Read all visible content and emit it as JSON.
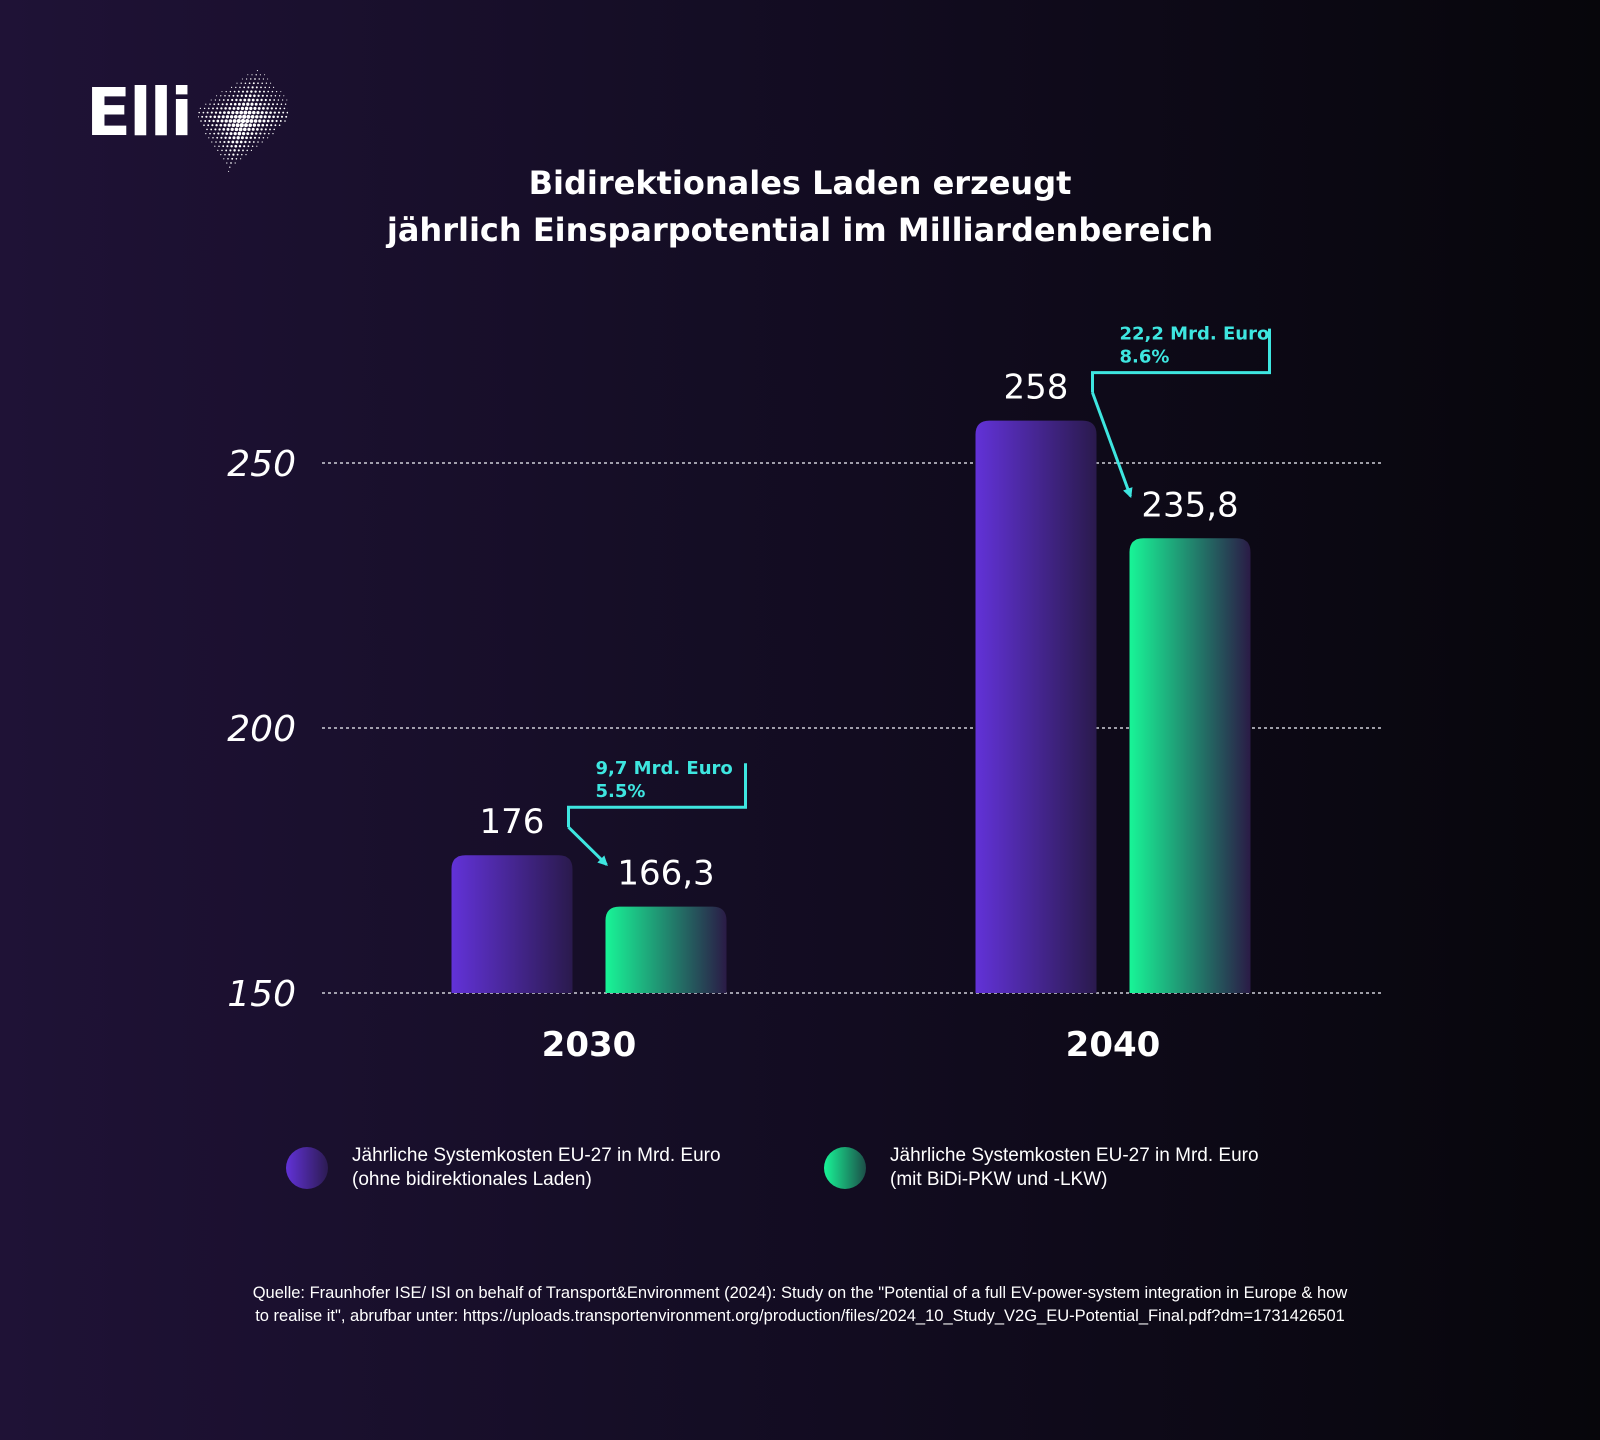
{
  "logo": {
    "text": "Elli"
  },
  "title_lines": [
    "Bidirektionales Laden erzeugt",
    "jährlich Einsparpotential im Milliardenbereich"
  ],
  "chart_data": {
    "type": "bar",
    "categories": [
      "2030",
      "2040"
    ],
    "series": [
      {
        "name": "Jährliche Systemkosten EU-27 in Mrd. Euro (ohne bidirektionales Laden)",
        "values": [
          176,
          258
        ],
        "labels": [
          "176",
          "258"
        ],
        "color": "#6232d8"
      },
      {
        "name": "Jährliche Systemkosten EU-27 in Mrd. Euro (mit BiDi-PKW und -LKW)",
        "values": [
          166.3,
          235.8
        ],
        "labels": [
          "166,3",
          "235,8"
        ],
        "color": "#18f597"
      }
    ],
    "ylim": [
      150,
      250
    ],
    "yticks": [
      "150",
      "200",
      "250"
    ],
    "grid": true,
    "annotations": [
      {
        "category": "2030",
        "line1": "9,7 Mrd. Euro",
        "line2": "5.5%"
      },
      {
        "category": "2040",
        "line1": "22,2 Mrd. Euro",
        "line2": "8.6%"
      }
    ],
    "annotation_color": "#3ee6e0"
  },
  "legend": [
    {
      "line1": "Jährliche Systemkosten EU-27 in Mrd. Euro",
      "line2": "(ohne bidirektionales Laden)"
    },
    {
      "line1": "Jährliche Systemkosten EU-27 in Mrd. Euro",
      "line2": "(mit BiDi-PKW und -LKW)"
    }
  ],
  "source": {
    "line1": "Quelle: Fraunhofer ISE/ ISI on behalf of Transport&Environment (2024): Study on the \"Potential of a full EV-power-system integration in Europe & how",
    "line2": "to realise it\", abrufbar unter: https://uploads.transportenvironment.org/production/files/2024_10_Study_V2G_EU-Potential_Final.pdf?dm=1731426501"
  }
}
